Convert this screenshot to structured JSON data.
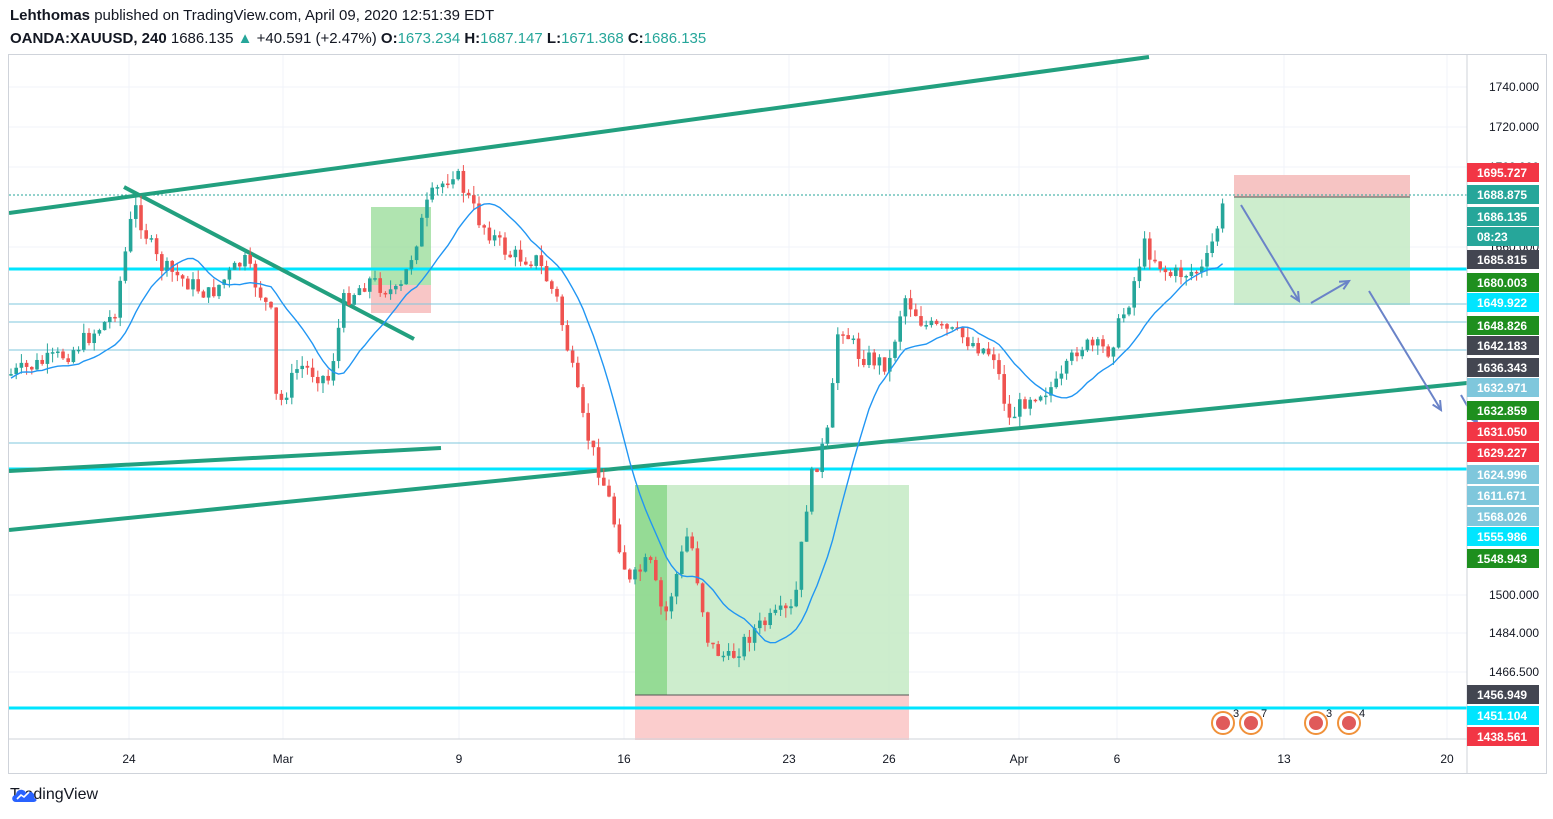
{
  "header": {
    "publisher": "Lehthomas",
    "published_text": "published on TradingView.com, April 09, 2020 12:51:39 EDT",
    "symbol": "OANDA:XAUUSD, 240",
    "last": "1686.135",
    "change": "+40.591 (+2.47%)",
    "o_label": "O:",
    "o": "1673.234",
    "h_label": "H:",
    "h": "1687.147",
    "l_label": "L:",
    "l": "1671.368",
    "c_label": "C:",
    "c": "1686.135",
    "up_color": "#26a69a"
  },
  "footer": {
    "brand": "TradingView",
    "logo_icon": "tradingview-cloud-icon"
  },
  "chart_data": {
    "type": "candlestick",
    "y_axis_ticks": [
      "1740.000",
      "1720.000",
      "1700.000",
      "1660.000",
      "1500.000",
      "1484.000",
      "1466.500"
    ],
    "x_axis_ticks": [
      "24",
      "Mar",
      "9",
      "16",
      "23",
      "26",
      "Apr",
      "6",
      "13",
      "20"
    ],
    "price_tags": [
      {
        "label": "1695.727",
        "color": "#f23645"
      },
      {
        "label": "1688.875",
        "color": "#26a69a"
      },
      {
        "label": "1686.135",
        "color": "#26a69a"
      },
      {
        "label": "08:23",
        "color": "#26a69a"
      },
      {
        "label": "1685.815",
        "color": "#434651"
      },
      {
        "label": "1680.003",
        "color": "#1e8f1e"
      },
      {
        "label": "1649.922",
        "color": "#00e5ff"
      },
      {
        "label": "1648.826",
        "color": "#1e8f1e"
      },
      {
        "label": "1642.183",
        "color": "#434651"
      },
      {
        "label": "1636.343",
        "color": "#434651"
      },
      {
        "label": "1632.971",
        "color": "#7fc7dc"
      },
      {
        "label": "1632.859",
        "color": "#1e8f1e"
      },
      {
        "label": "1631.050",
        "color": "#f23645"
      },
      {
        "label": "1629.227",
        "color": "#f23645"
      },
      {
        "label": "1624.996",
        "color": "#7fc7dc"
      },
      {
        "label": "1611.671",
        "color": "#7fc7dc"
      },
      {
        "label": "1568.026",
        "color": "#7fc7dc"
      },
      {
        "label": "1555.986",
        "color": "#00e5ff"
      },
      {
        "label": "1548.943",
        "color": "#1e8f1e"
      },
      {
        "label": "1456.949",
        "color": "#434651"
      },
      {
        "label": "1451.104",
        "color": "#00e5ff"
      },
      {
        "label": "1438.561",
        "color": "#f23645"
      }
    ],
    "event_badges": [
      "3",
      "7",
      "3",
      "4"
    ],
    "colors": {
      "up": "#26a69a",
      "down": "#ef5350",
      "ma": "#2196f3",
      "trendline": "#22a07f",
      "level": "#00e5ff"
    }
  }
}
